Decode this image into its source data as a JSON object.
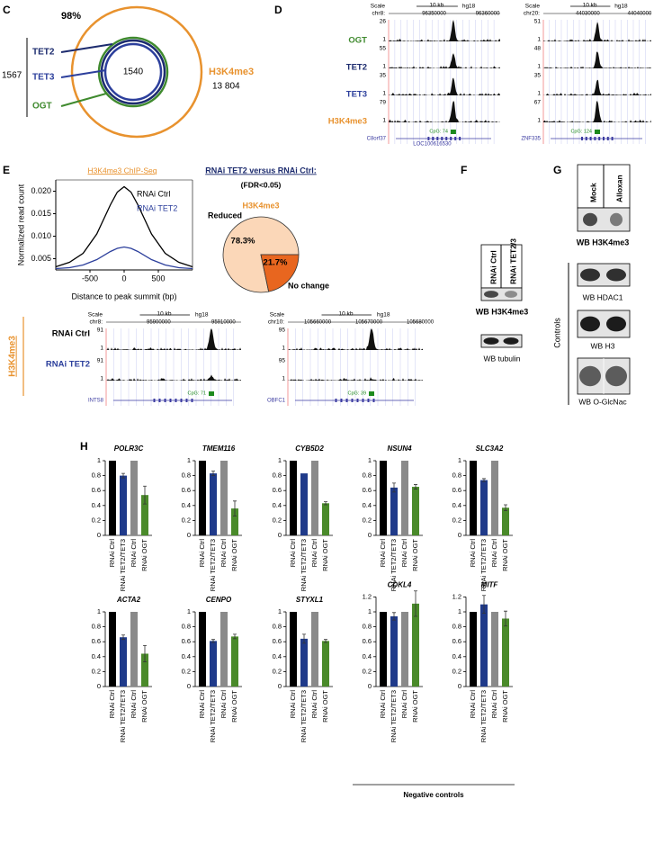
{
  "panels": {
    "c": {
      "label": "C",
      "percent": "98%",
      "total": "1567",
      "overlap": "1540",
      "sets": [
        {
          "name": "TET2",
          "color": "#1c2b6e"
        },
        {
          "name": "TET3",
          "color": "#2c3f9c"
        },
        {
          "name": "OGT",
          "color": "#3f8a2e"
        }
      ],
      "outer": {
        "name": "H3K4me3",
        "count": "13 804",
        "color": "#e8922e"
      }
    },
    "d": {
      "label": "D",
      "tracks": [
        {
          "name": "OGT",
          "color": "#3f8a2e"
        },
        {
          "name": "TET2",
          "color": "#1c2b6e"
        },
        {
          "name": "TET3",
          "color": "#2c3f9c"
        },
        {
          "name": "H3K4me3",
          "color": "#e8922e"
        }
      ],
      "browsers": [
        {
          "scale": "Scale",
          "chrom": "chr8:",
          "span": "10 kb",
          "build": "hg18",
          "coords": [
            "96350000",
            "96360000"
          ],
          "maxes": [
            "26",
            "55",
            "35",
            "79"
          ],
          "min": "1",
          "cpg": "CpG: 74",
          "genes": [
            "C8orf37",
            "LOC100616530"
          ]
        },
        {
          "scale": "Scale",
          "chrom": "chr20:",
          "span": "10 kb",
          "build": "hg18",
          "coords": [
            "44030000",
            "44040000"
          ],
          "maxes": [
            "51",
            "48",
            "35",
            "67"
          ],
          "min": "1",
          "cpg": "CpG: 124",
          "genes": [
            "ZNF335"
          ]
        }
      ]
    },
    "e": {
      "label": "E",
      "chip_title": "H3K4me3 ChIP-Seq",
      "y_label": "Normalized read count",
      "x_label": "Distance to peak summit (bp)",
      "track_group": "H3K4me3",
      "track_rows": [
        {
          "name": "RNAi Ctrl",
          "color": "#000000"
        },
        {
          "name": "RNAi TET2",
          "color": "#2c3f9c"
        }
      ],
      "browsers": [
        {
          "scale": "Scale",
          "chrom": "chr8:",
          "span": "10 kb",
          "build": "hg18",
          "coords": [
            "95900000",
            "95910000"
          ],
          "maxes": [
            "91",
            "91"
          ],
          "min": "1",
          "cpg": "CpG: 71",
          "genes": [
            "INTS8"
          ]
        },
        {
          "scale": "Scale",
          "chrom": "chr10:",
          "span": "10 kb",
          "build": "hg18",
          "coords": [
            "105660000",
            "105670000",
            "105680000"
          ],
          "maxes": [
            "95",
            "95"
          ],
          "min": "1",
          "cpg": "CpG: 39",
          "genes": [
            "OBFC1"
          ]
        }
      ]
    },
    "f": {
      "label": "F",
      "lanes": [
        "RNAi Ctrl",
        "RNAi TET2/3"
      ],
      "blots": [
        "WB H3K4me3",
        "WB tubulin"
      ]
    },
    "g": {
      "label": "G",
      "lanes": [
        "Mock",
        "Alloxan"
      ],
      "blots": [
        "WB H3K4me3"
      ],
      "controls": "Controls",
      "control_blots": [
        "WB HDAC1",
        "WB H3",
        "WB O-GlcNac"
      ]
    },
    "h": {
      "label": "H",
      "note": "Negative controls"
    }
  },
  "chart_data": [
    {
      "type": "line",
      "x": [
        -1000,
        -800,
        -600,
        -400,
        -200,
        -100,
        0,
        100,
        200,
        400,
        600,
        800,
        1000
      ],
      "series": [
        {
          "name": "RNAi Ctrl",
          "color": "#000000",
          "values": [
            0.0032,
            0.0042,
            0.0062,
            0.0105,
            0.017,
            0.0198,
            0.021,
            0.0198,
            0.017,
            0.0105,
            0.0062,
            0.0042,
            0.0032
          ]
        },
        {
          "name": "RNAi TET2",
          "color": "#2c3f9c",
          "values": [
            0.0028,
            0.003,
            0.0036,
            0.0048,
            0.0066,
            0.0073,
            0.0076,
            0.0073,
            0.0066,
            0.0048,
            0.0036,
            0.003,
            0.0028
          ]
        }
      ],
      "xlim": [
        -1000,
        1000
      ],
      "xticks": [
        -500,
        0,
        500
      ],
      "ylim": [
        0.0025,
        0.0225
      ],
      "yticks": [
        0.005,
        {
          "value": 0.01,
          "label": "0.010"
        },
        0.015,
        {
          "value": 0.02,
          "label": "0.020"
        }
      ]
    },
    {
      "type": "pie",
      "title": "RNAi TET2 versus RNAi Ctrl:",
      "subtitle": "(FDR<0.05)",
      "center_label": "H3K4me3",
      "categories": [
        "Reduced",
        "No change"
      ],
      "values": [
        78.3,
        21.7
      ],
      "value_labels": [
        "78.3%",
        "21.7%"
      ],
      "colors": [
        "#fbd7b8",
        "#e8661f"
      ]
    },
    {
      "type": "bar",
      "title": "POLR3C",
      "categories": [
        "RNAi Ctrl",
        "RNAi TET2/TET3",
        "RNAi Ctrl",
        "RNAi OGT"
      ],
      "values": [
        1,
        0.8,
        1,
        0.54
      ],
      "errors": [
        null,
        0.03,
        null,
        0.12
      ],
      "colors": [
        "#000000",
        "#1f3a8a",
        "#8a8a8a",
        "#4a8a2a"
      ],
      "ylim": [
        0,
        1
      ],
      "yticks": [
        0,
        0.2,
        0.4,
        0.6,
        0.8,
        1
      ]
    },
    {
      "type": "bar",
      "title": "TMEM116",
      "categories": [
        "RNAi Ctrl",
        "RNAi TET2/TET3",
        "RNAi Ctrl",
        "RNAi OGT"
      ],
      "values": [
        1,
        0.83,
        1,
        0.36
      ],
      "errors": [
        null,
        0.03,
        null,
        0.1
      ],
      "colors": [
        "#000000",
        "#1f3a8a",
        "#8a8a8a",
        "#4a8a2a"
      ],
      "ylim": [
        0,
        1
      ],
      "yticks": [
        0,
        0.2,
        0.4,
        0.6,
        0.8,
        1
      ]
    },
    {
      "type": "bar",
      "title": "CYB5D2",
      "categories": [
        "RNAi Ctrl",
        "RNAi TET2/TET3",
        "RNAi Ctrl",
        "RNAi OGT"
      ],
      "values": [
        1,
        0.83,
        1,
        0.43
      ],
      "errors": [
        null,
        null,
        null,
        0.02
      ],
      "colors": [
        "#000000",
        "#1f3a8a",
        "#8a8a8a",
        "#4a8a2a"
      ],
      "ylim": [
        0,
        1
      ],
      "yticks": [
        0,
        0.2,
        0.4,
        0.6,
        0.8,
        1
      ]
    },
    {
      "type": "bar",
      "title": "NSUN4",
      "categories": [
        "RNAi Ctrl",
        "RNAi TET2/TET3",
        "RNAi Ctrl",
        "RNAi OGT"
      ],
      "values": [
        1,
        0.64,
        1,
        0.65
      ],
      "errors": [
        null,
        0.06,
        null,
        0.03
      ],
      "colors": [
        "#000000",
        "#1f3a8a",
        "#8a8a8a",
        "#4a8a2a"
      ],
      "ylim": [
        0,
        1
      ],
      "yticks": [
        0,
        0.2,
        0.4,
        0.6,
        0.8,
        1
      ]
    },
    {
      "type": "bar",
      "title": "SLC3A2",
      "categories": [
        "RNAi Ctrl",
        "RNAi TET2/TET3",
        "RNAi Ctrl",
        "RNAi OGT"
      ],
      "values": [
        1,
        0.74,
        1,
        0.37
      ],
      "errors": [
        null,
        0.02,
        null,
        0.04
      ],
      "colors": [
        "#000000",
        "#1f3a8a",
        "#8a8a8a",
        "#4a8a2a"
      ],
      "ylim": [
        0,
        1
      ],
      "yticks": [
        0,
        0.2,
        0.4,
        0.6,
        0.8,
        1
      ]
    },
    {
      "type": "bar",
      "title": "ACTA2",
      "categories": [
        "RNAi Ctrl",
        "RNAi TET2/TET3",
        "RNAi Ctrl",
        "RNAi OGT"
      ],
      "values": [
        1,
        0.66,
        1,
        0.44
      ],
      "errors": [
        null,
        0.03,
        null,
        0.11
      ],
      "colors": [
        "#000000",
        "#1f3a8a",
        "#8a8a8a",
        "#4a8a2a"
      ],
      "ylim": [
        0,
        1
      ],
      "yticks": [
        0,
        0.2,
        0.4,
        0.6,
        0.8,
        1
      ]
    },
    {
      "type": "bar",
      "title": "CENPO",
      "categories": [
        "RNAi Ctrl",
        "RNAi TET2/TET3",
        "RNAi Ctrl",
        "RNAi OGT"
      ],
      "values": [
        1,
        0.61,
        1,
        0.67
      ],
      "errors": [
        null,
        0.02,
        null,
        0.03
      ],
      "colors": [
        "#000000",
        "#1f3a8a",
        "#8a8a8a",
        "#4a8a2a"
      ],
      "ylim": [
        0,
        1
      ],
      "yticks": [
        0,
        0.2,
        0.4,
        0.6,
        0.8,
        1
      ]
    },
    {
      "type": "bar",
      "title": "STYXL1",
      "categories": [
        "RNAi Ctrl",
        "RNAi TET2/TET3",
        "RNAi Ctrl",
        "RNAi OGT"
      ],
      "values": [
        1,
        0.64,
        1,
        0.61
      ],
      "errors": [
        null,
        0.06,
        null,
        0.02
      ],
      "colors": [
        "#000000",
        "#1f3a8a",
        "#8a8a8a",
        "#4a8a2a"
      ],
      "ylim": [
        0,
        1
      ],
      "yticks": [
        0,
        0.2,
        0.4,
        0.6,
        0.8,
        1
      ]
    },
    {
      "type": "bar",
      "title": "CDKL4",
      "categories": [
        "RNAi Ctrl",
        "RNAi TET2/TET3",
        "RNAi Ctrl",
        "RNAi OGT"
      ],
      "values": [
        1,
        0.94,
        1,
        1.11
      ],
      "errors": [
        null,
        0.05,
        null,
        0.17
      ],
      "colors": [
        "#000000",
        "#1f3a8a",
        "#8a8a8a",
        "#4a8a2a"
      ],
      "ylim": [
        0,
        1.2
      ],
      "yticks": [
        0,
        0.2,
        0.4,
        0.6,
        0.8,
        1,
        1.2
      ]
    },
    {
      "type": "bar",
      "title": "MITF",
      "categories": [
        "RNAi Ctrl",
        "RNAi TET2/TET3",
        "RNAi Ctrl",
        "RNAi OGT"
      ],
      "values": [
        1,
        1.1,
        1,
        0.91
      ],
      "errors": [
        null,
        0.12,
        null,
        0.1
      ],
      "colors": [
        "#000000",
        "#1f3a8a",
        "#8a8a8a",
        "#4a8a2a"
      ],
      "ylim": [
        0,
        1.2
      ],
      "yticks": [
        0,
        0.2,
        0.4,
        0.6,
        0.8,
        1,
        1.2
      ]
    }
  ]
}
